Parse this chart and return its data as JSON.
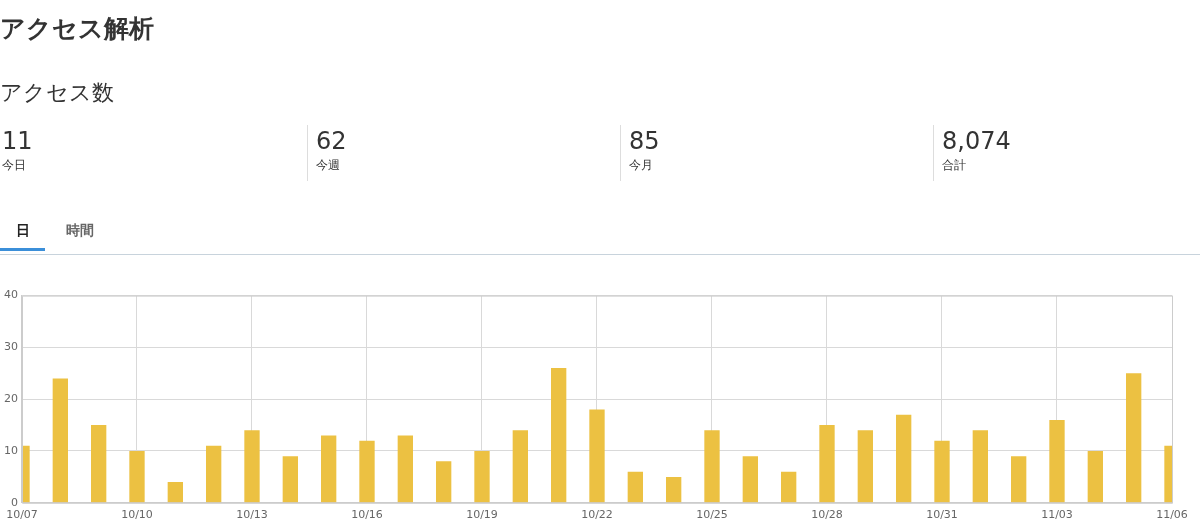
{
  "chart_data": {
    "type": "bar",
    "title": "アクセス解析",
    "subtitle": "アクセス数",
    "annotations": [
      "11",
      "今日",
      "62",
      "今週",
      "85",
      "今月",
      "8,074",
      "合計",
      "日",
      "時間"
    ],
    "categories": [
      "10/07",
      null,
      null,
      "10/10",
      null,
      null,
      "10/13",
      null,
      null,
      "10/16",
      null,
      null,
      "10/19",
      null,
      null,
      "10/22",
      null,
      null,
      "10/25",
      null,
      null,
      "10/28",
      null,
      null,
      "10/31",
      null,
      null,
      "11/03",
      null,
      null,
      "11/06"
    ],
    "values": [
      11,
      24,
      15,
      10,
      4,
      11,
      14,
      9,
      13,
      12,
      13,
      8,
      10,
      14,
      26,
      18,
      6,
      5,
      14,
      9,
      6,
      15,
      14,
      17,
      12,
      14,
      9,
      16,
      10,
      25,
      11
    ],
    "color": "#ecc142",
    "ylim": [
      0,
      40
    ],
    "yticks": [
      0,
      10,
      20,
      30,
      40
    ],
    "grid": true
  }
}
